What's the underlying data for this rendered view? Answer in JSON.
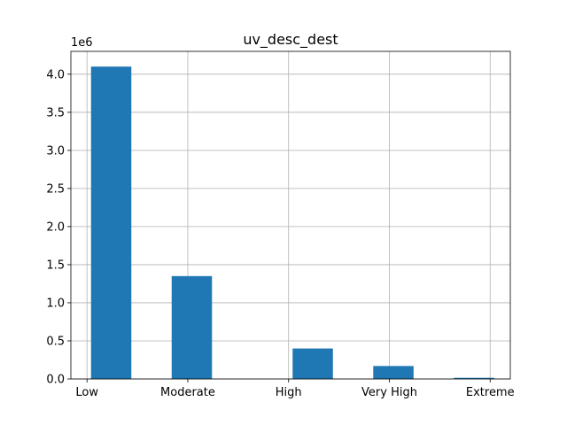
{
  "chart_data": {
    "type": "bar",
    "title": "uv_desc_dest",
    "y_offset_label": "1e6",
    "categories": [
      "Low",
      "Moderate",
      "High",
      "Very High",
      "Extreme"
    ],
    "category_positions": [
      0,
      1.25,
      2.5,
      3.75,
      5
    ],
    "bars": [
      {
        "category": "Low",
        "x0": 0.05,
        "x1": 0.55,
        "value": 4.1
      },
      {
        "category": "Moderate",
        "x0": 1.05,
        "x1": 1.55,
        "value": 1.35
      },
      {
        "category": "High",
        "x0": 2.55,
        "x1": 3.05,
        "value": 0.4
      },
      {
        "category": "Very High",
        "x0": 3.55,
        "x1": 4.05,
        "value": 0.17
      },
      {
        "category": "Extreme",
        "x0": 4.55,
        "x1": 5.05,
        "value": 0.015
      }
    ],
    "yticks": [
      0.0,
      0.5,
      1.0,
      1.5,
      2.0,
      2.5,
      3.0,
      3.5,
      4.0
    ],
    "ytick_labels": [
      "0.0",
      "0.5",
      "1.0",
      "1.5",
      "2.0",
      "2.5",
      "3.0",
      "3.5",
      "4.0"
    ],
    "xlim": [
      -0.2,
      5.25
    ],
    "ylim": [
      0,
      4.3
    ],
    "grid": true,
    "bar_color": "#1f77b4",
    "grid_color": "#b0b0b0"
  }
}
